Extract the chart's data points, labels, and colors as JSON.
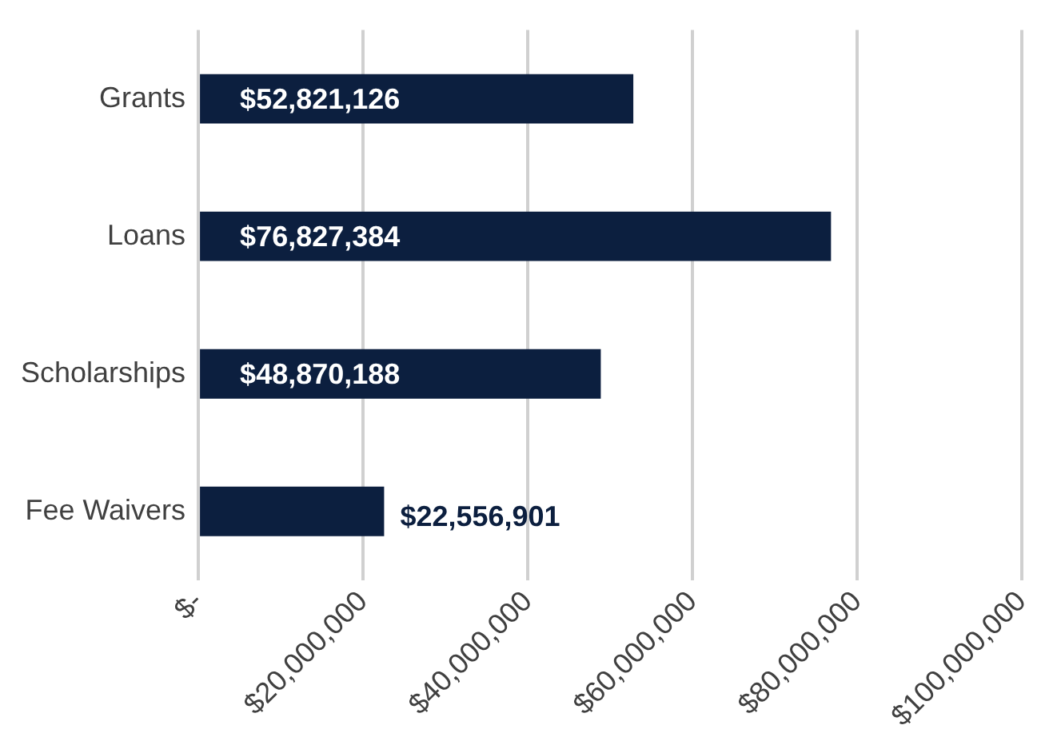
{
  "chart_data": {
    "type": "bar",
    "orientation": "horizontal",
    "categories": [
      "Grants",
      "Loans",
      "Scholarships",
      "Fee Waivers"
    ],
    "values": [
      52821126,
      76827384,
      48870188,
      22556901
    ],
    "value_labels": [
      "$52,821,126",
      "$76,827,384",
      "$48,870,188",
      "$22,556,901"
    ],
    "color": "#0c1f3f",
    "xlim": [
      0,
      100000000
    ],
    "xticks": [
      {
        "value": 0,
        "label": "$-"
      },
      {
        "value": 20000000,
        "label": "$20,000,000"
      },
      {
        "value": 40000000,
        "label": "$40,000,000"
      },
      {
        "value": 60000000,
        "label": "$60,000,000"
      },
      {
        "value": 80000000,
        "label": "$80,000,000"
      },
      {
        "value": 100000000,
        "label": "$100,000,000"
      }
    ],
    "grid": "x",
    "legend": false
  }
}
